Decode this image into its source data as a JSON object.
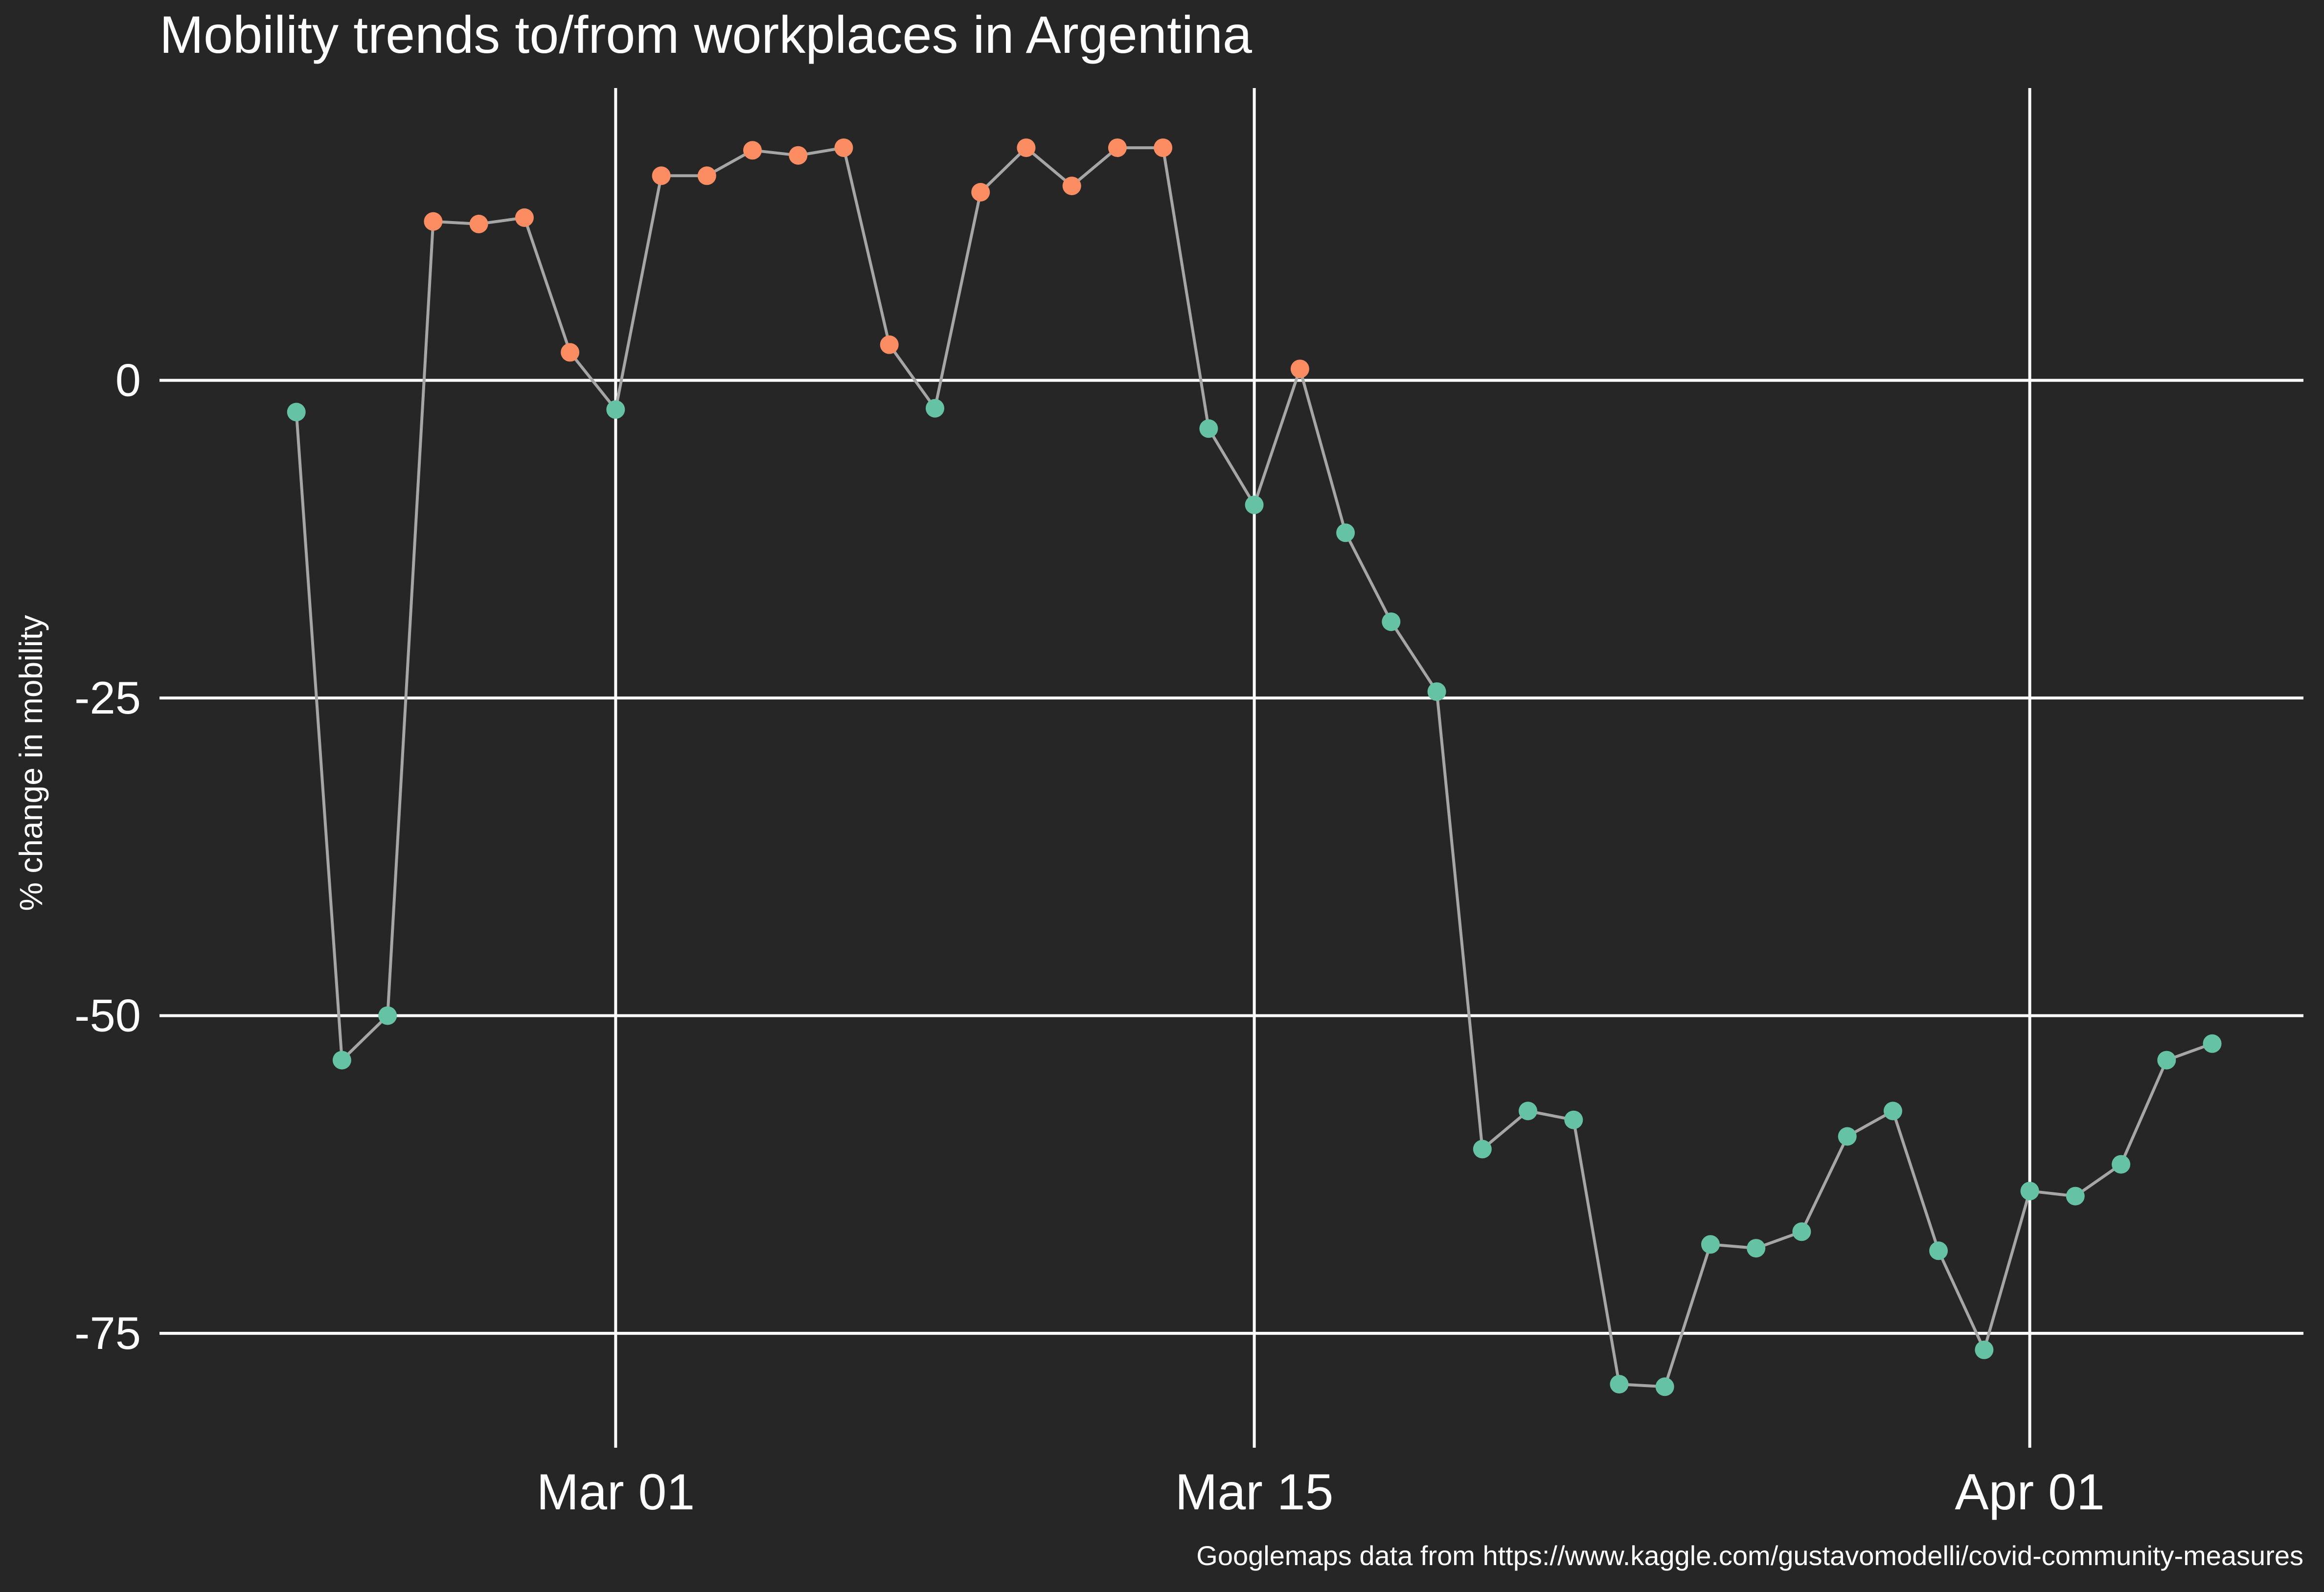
{
  "chart_data": {
    "type": "line",
    "title": "Mobility trends to/from workplaces in Argentina",
    "subtitle": "",
    "xlabel": "",
    "ylabel": "% change in mobility",
    "caption": "Googlemaps data from https://www.kaggle.com/gustavomodelli/covid-community-measures",
    "x_ticks": [
      "Mar 01",
      "Mar 15",
      "Apr 01"
    ],
    "x_tick_dates": [
      "2020-03-01",
      "2020-03-15",
      "2020-04-01"
    ],
    "y_ticks": [
      0,
      -25,
      -50,
      -75
    ],
    "xlim": [
      "2020-02-20",
      "2020-04-07"
    ],
    "ylim": [
      -84,
      23
    ],
    "grid": true,
    "legend": "none",
    "colors": {
      "background": "#262626",
      "grid": "#ffffff",
      "line": "#a6a6a6",
      "positive": "#fc8d62",
      "negative": "#66c2a5",
      "text": "#ffffff"
    },
    "series": [
      {
        "x": [
          "2020-02-23",
          "2020-02-24",
          "2020-02-25",
          "2020-02-26",
          "2020-02-27",
          "2020-02-28",
          "2020-02-29",
          "2020-03-01",
          "2020-03-02",
          "2020-03-03",
          "2020-03-04",
          "2020-03-05",
          "2020-03-06",
          "2020-03-07",
          "2020-03-08",
          "2020-03-09",
          "2020-03-10",
          "2020-03-11",
          "2020-03-12",
          "2020-03-13",
          "2020-03-14",
          "2020-03-15",
          "2020-03-16",
          "2020-03-17",
          "2020-03-18",
          "2020-03-19",
          "2020-03-20",
          "2020-03-21",
          "2020-03-22",
          "2020-03-23",
          "2020-03-24",
          "2020-03-25",
          "2020-03-26",
          "2020-03-27",
          "2020-03-28",
          "2020-03-29",
          "2020-03-30",
          "2020-03-31",
          "2020-04-01",
          "2020-04-02",
          "2020-04-03",
          "2020-04-04",
          "2020-04-05"
        ],
        "y": [
          -2.5,
          -53.5,
          -50,
          12.5,
          12.3,
          12.8,
          2.2,
          -2.3,
          16.1,
          16.1,
          18.1,
          17.7,
          18.3,
          2.8,
          -2.2,
          14.8,
          18.3,
          15.3,
          18.3,
          18.3,
          -3.8,
          -9.8,
          0.9,
          -12,
          -19,
          -24.5,
          -60.5,
          -57.5,
          -58.2,
          -79,
          -79.2,
          -68,
          -68.3,
          -67,
          -59.5,
          -57.5,
          -68.5,
          -76.3,
          -63.8,
          -64.2,
          -61.7,
          -53.5,
          -52.2
        ]
      }
    ]
  }
}
